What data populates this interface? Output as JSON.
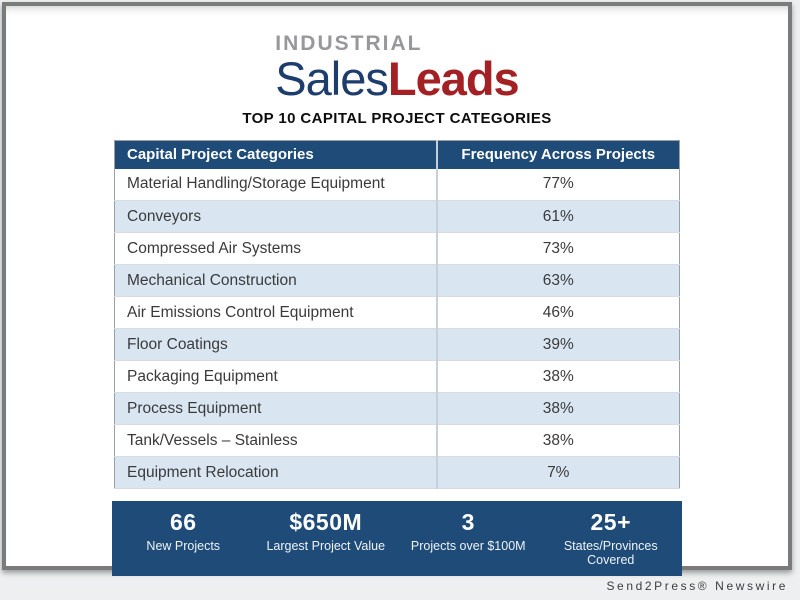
{
  "logo": {
    "top": "INDUSTRIAL",
    "part1": "Sales",
    "part2": "Leads"
  },
  "title": "TOP 10 CAPITAL PROJECT CATEGORIES",
  "table": {
    "headers": {
      "category": "Capital Project Categories",
      "frequency": "Frequency Across Projects"
    },
    "rows": [
      {
        "category": "Material Handling/Storage Equipment",
        "frequency": "77%"
      },
      {
        "category": "Conveyors",
        "frequency": "61%"
      },
      {
        "category": "Compressed Air Systems",
        "frequency": "73%"
      },
      {
        "category": "Mechanical Construction",
        "frequency": "63%"
      },
      {
        "category": "Air Emissions Control Equipment",
        "frequency": "46%"
      },
      {
        "category": "Floor Coatings",
        "frequency": "39%"
      },
      {
        "category": "Packaging Equipment",
        "frequency": "38%"
      },
      {
        "category": "Process Equipment",
        "frequency": "38%"
      },
      {
        "category": "Tank/Vessels – Stainless",
        "frequency": "38%"
      },
      {
        "category": "Equipment Relocation",
        "frequency": "7%"
      }
    ]
  },
  "stats": [
    {
      "value": "66",
      "label": "New Projects"
    },
    {
      "value": "$650M",
      "label": "Largest Project Value"
    },
    {
      "value": "3",
      "label": "Projects over $100M"
    },
    {
      "value": "25+",
      "label": "States/Provinces Covered"
    }
  ],
  "caption": "Send2Press® Newswire",
  "colors": {
    "header_navy": "#1f4b78",
    "row_alt_blue": "#d9e6f2",
    "logo_gray": "#97989b",
    "logo_navy": "#1d3d6d",
    "logo_red": "#a32125",
    "frame_gray": "#7b7b7b"
  },
  "chart_data": {
    "type": "table",
    "title": "TOP 10 CAPITAL PROJECT CATEGORIES",
    "columns": [
      "Capital Project Categories",
      "Frequency Across Projects"
    ],
    "categories": [
      "Material Handling/Storage Equipment",
      "Conveyors",
      "Compressed Air Systems",
      "Mechanical Construction",
      "Air Emissions Control Equipment",
      "Floor Coatings",
      "Packaging Equipment",
      "Process Equipment",
      "Tank/Vessels – Stainless",
      "Equipment Relocation"
    ],
    "values_percent": [
      77,
      61,
      73,
      63,
      46,
      39,
      38,
      38,
      38,
      7
    ],
    "summary_stats": [
      {
        "value": "66",
        "label": "New Projects"
      },
      {
        "value": "$650M",
        "label": "Largest Project Value"
      },
      {
        "value": "3",
        "label": "Projects over $100M"
      },
      {
        "value": "25+",
        "label": "States/Provinces Covered"
      }
    ]
  }
}
